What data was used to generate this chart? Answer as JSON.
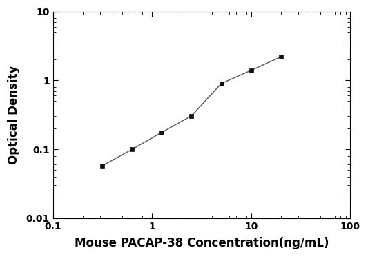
{
  "x_values": [
    0.313,
    0.625,
    1.25,
    2.5,
    5.0,
    10.0,
    20.0
  ],
  "y_values": [
    0.057,
    0.099,
    0.175,
    0.305,
    0.9,
    1.4,
    2.2
  ],
  "xlabel": "Mouse PACAP-38 Concentration(ng/mL)",
  "ylabel": "Optical Density",
  "xlim": [
    0.1,
    100
  ],
  "ylim": [
    0.01,
    10
  ],
  "line_color": "#555555",
  "marker_color": "#111111",
  "marker": "s",
  "marker_size": 5,
  "line_width": 1.0,
  "background_color": "#ffffff",
  "xlabel_fontsize": 12,
  "ylabel_fontsize": 12,
  "tick_fontsize": 10,
  "xticks": [
    0.1,
    1,
    10,
    100
  ],
  "xtick_labels": [
    "0.1",
    "1",
    "10",
    "100"
  ],
  "yticks": [
    0.01,
    0.1,
    1,
    10
  ],
  "ytick_labels": [
    "0.01",
    "0.1",
    "1",
    "10"
  ]
}
